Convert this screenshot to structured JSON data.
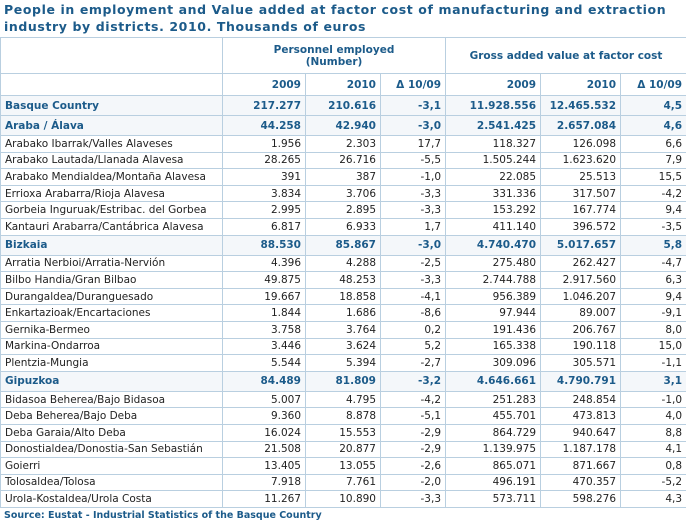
{
  "header": {
    "title": "People in employment and Value added at factor cost of manufacturing and extraction industry by districts. 2010. Thousands of euros"
  },
  "table": {
    "group_headers": [
      "Personnel employed\n(Number)",
      "Gross added value at factor cost"
    ],
    "sub_headers": [
      "2009",
      "2010",
      "Δ 10/09",
      "2009",
      "2010",
      "Δ 10/09"
    ],
    "total": [
      "Basque Country",
      "217.277",
      "210.616",
      "-3,1",
      "11.928.556",
      "12.465.532",
      "4,5"
    ],
    "regions": [
      {
        "row": [
          "Araba / Álava",
          "44.258",
          "42.940",
          "-3,0",
          "2.541.425",
          "2.657.084",
          "4,6"
        ],
        "districts": [
          [
            "Arabako Ibarrak/Valles Alaveses",
            "1.956",
            "2.303",
            "17,7",
            "118.327",
            "126.098",
            "6,6"
          ],
          [
            "Arabako Lautada/Llanada Alavesa",
            "28.265",
            "26.716",
            "-5,5",
            "1.505.244",
            "1.623.620",
            "7,9"
          ],
          [
            "Arabako Mendialdea/Montaña Alavesa",
            "391",
            "387",
            "-1,0",
            "22.085",
            "25.513",
            "15,5"
          ],
          [
            "Errioxa Arabarra/Rioja Alavesa",
            "3.834",
            "3.706",
            "-3,3",
            "331.336",
            "317.507",
            "-4,2"
          ],
          [
            "Gorbeia Inguruak/Estribac. del Gorbea",
            "2.995",
            "2.895",
            "-3,3",
            "153.292",
            "167.774",
            "9,4"
          ],
          [
            "Kantauri Arabarra/Cantábrica Alavesa",
            "6.817",
            "6.933",
            "1,7",
            "411.140",
            "396.572",
            "-3,5"
          ]
        ]
      },
      {
        "row": [
          "Bizkaia",
          "88.530",
          "85.867",
          "-3,0",
          "4.740.470",
          "5.017.657",
          "5,8"
        ],
        "districts": [
          [
            "Arratia Nerbioi/Arratia-Nervión",
            "4.396",
            "4.288",
            "-2,5",
            "275.480",
            "262.427",
            "-4,7"
          ],
          [
            "Bilbo Handia/Gran Bilbao",
            "49.875",
            "48.253",
            "-3,3",
            "2.744.788",
            "2.917.560",
            "6,3"
          ],
          [
            "Durangaldea/Duranguesado",
            "19.667",
            "18.858",
            "-4,1",
            "956.389",
            "1.046.207",
            "9,4"
          ],
          [
            "Enkartazioak/Encartaciones",
            "1.844",
            "1.686",
            "-8,6",
            "97.944",
            "89.007",
            "-9,1"
          ],
          [
            "Gernika-Bermeo",
            "3.758",
            "3.764",
            "0,2",
            "191.436",
            "206.767",
            "8,0"
          ],
          [
            "Markina-Ondarroa",
            "3.446",
            "3.624",
            "5,2",
            "165.338",
            "190.118",
            "15,0"
          ],
          [
            "Plentzia-Mungia",
            "5.544",
            "5.394",
            "-2,7",
            "309.096",
            "305.571",
            "-1,1"
          ]
        ]
      },
      {
        "row": [
          "Gipuzkoa",
          "84.489",
          "81.809",
          "-3,2",
          "4.646.661",
          "4.790.791",
          "3,1"
        ],
        "districts": [
          [
            "Bidasoa Beherea/Bajo Bidasoa",
            "5.007",
            "4.795",
            "-4,2",
            "251.283",
            "248.854",
            "-1,0"
          ],
          [
            "Deba Beherea/Bajo Deba",
            "9.360",
            "8.878",
            "-5,1",
            "455.701",
            "473.813",
            "4,0"
          ],
          [
            "Deba Garaia/Alto Deba",
            "16.024",
            "15.553",
            "-2,9",
            "864.729",
            "940.647",
            "8,8"
          ],
          [
            "Donostialdea/Donostia-San Sebastián",
            "21.508",
            "20.877",
            "-2,9",
            "1.139.975",
            "1.187.178",
            "4,1"
          ],
          [
            "Goierri",
            "13.405",
            "13.055",
            "-2,6",
            "865.071",
            "871.667",
            "0,8"
          ],
          [
            "Tolosaldea/Tolosa",
            "7.918",
            "7.761",
            "-2,0",
            "496.191",
            "470.357",
            "-5,2"
          ],
          [
            "Urola-Kostaldea/Urola Costa",
            "11.267",
            "10.890",
            "-3,3",
            "573.711",
            "598.276",
            "4,3"
          ]
        ]
      }
    ]
  },
  "footer": {
    "source": "Source: Eustat - Industrial Statistics of the Basque Country"
  }
}
